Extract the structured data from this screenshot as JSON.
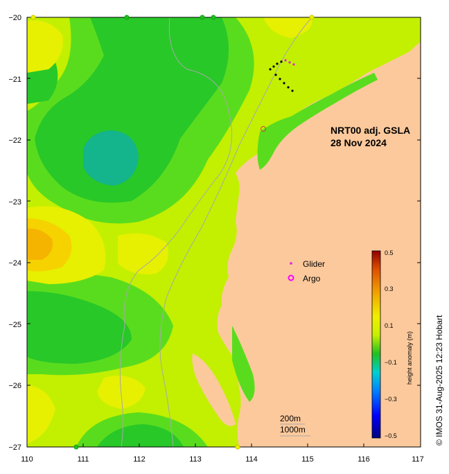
{
  "map": {
    "title_line1": "NRT00 adj. GSLA",
    "title_line2": "28 Nov 2024",
    "credit": "© IMOS 31-Aug-2025 12:23 Hobart",
    "x_ticks": [
      "110",
      "111",
      "112",
      "113",
      "114",
      "115",
      "116",
      "117"
    ],
    "y_ticks": [
      "−20",
      "−21",
      "−22",
      "−23",
      "−24",
      "−25",
      "−26",
      "−27"
    ],
    "lon_range": [
      110,
      117
    ],
    "lat_range": [
      -27,
      -20
    ],
    "legend": {
      "glider_label": "Glider",
      "argo_label": "Argo"
    },
    "scale": {
      "contour_1": "200m",
      "contour_2": "1000m"
    },
    "colorbar": {
      "title": "height anomaly (m)",
      "tick_labels": [
        "0.5",
        "0.3",
        "0.1",
        "−0.1",
        "−0.3",
        "−0.5"
      ],
      "range": [
        -0.5,
        0.5
      ]
    },
    "colors": {
      "land": "#fcc99c",
      "ocean_base": "#c2f000",
      "green_low": "#28c828",
      "green_mid": "#5adc1e",
      "yellow": "#e6f000",
      "orange": "#f5b400",
      "teal": "#14b48c",
      "glider": "#e61ee6",
      "argo": "#ff00ff"
    }
  }
}
